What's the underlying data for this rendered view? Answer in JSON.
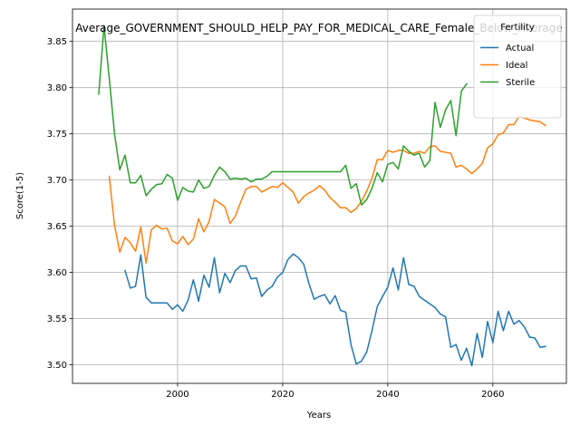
{
  "chart_data": {
    "type": "line",
    "title": "Average_GOVERNMENT_SHOULD_HELP_PAY_FOR_MEDICAL_CARE_Female_Below_Average",
    "xlabel": "Years",
    "ylabel": "Score(1-5)",
    "xlim": [
      1980,
      2074
    ],
    "ylim": [
      3.48,
      3.885
    ],
    "xticks": [
      2000,
      2020,
      2040,
      2060
    ],
    "yticks": [
      3.5,
      3.55,
      3.6,
      3.65,
      3.7,
      3.75,
      3.8,
      3.85
    ],
    "ytick_labels": [
      "3.50",
      "3.55",
      "3.60",
      "3.65",
      "3.70",
      "3.75",
      "3.80",
      "3.85"
    ],
    "grid": true,
    "legend": {
      "title": "Fertility",
      "placement": "upper right"
    },
    "series": [
      {
        "name": "Actual",
        "color": "#1f77b4",
        "x": [
          1990,
          1991,
          1992,
          1993,
          1994,
          1995,
          1996,
          1997,
          1998,
          1999,
          2000,
          2001,
          2002,
          2003,
          2004,
          2005,
          2006,
          2007,
          2008,
          2009,
          2010,
          2011,
          2012,
          2013,
          2014,
          2015,
          2016,
          2017,
          2018,
          2019,
          2020,
          2021,
          2022,
          2023,
          2024,
          2025,
          2026,
          2027,
          2028,
          2029,
          2030,
          2031,
          2032,
          2033,
          2034,
          2035,
          2036,
          2037,
          2038,
          2039,
          2040,
          2041,
          2042,
          2043,
          2044,
          2045,
          2046,
          2047,
          2048,
          2049,
          2050,
          2051,
          2052,
          2053,
          2054,
          2055,
          2056,
          2057,
          2058,
          2059,
          2060,
          2061,
          2062,
          2063,
          2064,
          2065,
          2066,
          2067,
          2068,
          2069,
          2070
        ],
        "values": [
          3.602,
          3.583,
          3.585,
          3.619,
          3.573,
          3.567,
          3.567,
          3.567,
          3.567,
          3.56,
          3.565,
          3.558,
          3.57,
          3.592,
          3.569,
          3.597,
          3.584,
          3.616,
          3.578,
          3.599,
          3.589,
          3.602,
          3.607,
          3.607,
          3.593,
          3.594,
          3.574,
          3.581,
          3.585,
          3.595,
          3.6,
          3.614,
          3.62,
          3.616,
          3.609,
          3.588,
          3.571,
          3.574,
          3.576,
          3.566,
          3.575,
          3.559,
          3.557,
          3.522,
          3.501,
          3.504,
          3.514,
          3.537,
          3.563,
          3.574,
          3.584,
          3.605,
          3.581,
          3.616,
          3.587,
          3.585,
          3.574,
          3.57,
          3.566,
          3.562,
          3.555,
          3.552,
          3.519,
          3.522,
          3.505,
          3.518,
          3.499,
          3.534,
          3.508,
          3.547,
          3.524,
          3.558,
          3.537,
          3.558,
          3.544,
          3.548,
          3.541,
          3.53,
          3.529,
          3.519,
          3.52
        ]
      },
      {
        "name": "Ideal",
        "color": "#ff7f0e",
        "x": [
          1987,
          1988,
          1989,
          1990,
          1991,
          1992,
          1993,
          1994,
          1995,
          1996,
          1997,
          1998,
          1999,
          2000,
          2001,
          2002,
          2003,
          2004,
          2005,
          2006,
          2007,
          2008,
          2009,
          2010,
          2011,
          2012,
          2013,
          2014,
          2015,
          2016,
          2017,
          2018,
          2019,
          2020,
          2021,
          2022,
          2023,
          2024,
          2025,
          2026,
          2027,
          2028,
          2029,
          2030,
          2031,
          2032,
          2033,
          2034,
          2035,
          2036,
          2037,
          2038,
          2039,
          2040,
          2041,
          2042,
          2043,
          2044,
          2045,
          2046,
          2047,
          2048,
          2049,
          2050,
          2051,
          2052,
          2053,
          2054,
          2055,
          2056,
          2057,
          2058,
          2059,
          2060,
          2061,
          2062,
          2063,
          2064,
          2065,
          2066,
          2067,
          2068,
          2069,
          2070
        ],
        "values": [
          3.704,
          3.651,
          3.622,
          3.638,
          3.632,
          3.623,
          3.649,
          3.61,
          3.646,
          3.651,
          3.647,
          3.648,
          3.634,
          3.631,
          3.639,
          3.63,
          3.636,
          3.658,
          3.644,
          3.655,
          3.679,
          3.675,
          3.671,
          3.653,
          3.661,
          3.676,
          3.69,
          3.693,
          3.693,
          3.687,
          3.69,
          3.693,
          3.692,
          3.697,
          3.692,
          3.687,
          3.675,
          3.682,
          3.686,
          3.689,
          3.694,
          3.689,
          3.681,
          3.676,
          3.67,
          3.67,
          3.665,
          3.669,
          3.677,
          3.688,
          3.702,
          3.722,
          3.722,
          3.732,
          3.73,
          3.732,
          3.732,
          3.729,
          3.729,
          3.731,
          3.729,
          3.736,
          3.737,
          3.731,
          3.73,
          3.729,
          3.714,
          3.716,
          3.712,
          3.707,
          3.712,
          3.718,
          3.735,
          3.739,
          3.749,
          3.751,
          3.76,
          3.76,
          3.769,
          3.767,
          3.765,
          3.764,
          3.763,
          3.759
        ]
      },
      {
        "name": "Sterile",
        "color": "#2ca02c",
        "x": [
          1985,
          1986,
          1987,
          1988,
          1989,
          1990,
          1991,
          1992,
          1993,
          1994,
          1995,
          1996,
          1997,
          1998,
          1999,
          2000,
          2001,
          2002,
          2003,
          2004,
          2005,
          2006,
          2007,
          2008,
          2009,
          2010,
          2011,
          2012,
          2013,
          2014,
          2015,
          2016,
          2017,
          2018,
          2019,
          2020,
          2021,
          2022,
          2023,
          2024,
          2025,
          2026,
          2027,
          2028,
          2029,
          2030,
          2031,
          2032,
          2033,
          2034,
          2035,
          2036,
          2037,
          2038,
          2039,
          2040,
          2041,
          2042,
          2043,
          2044,
          2045,
          2046,
          2047,
          2048,
          2049,
          2050,
          2051,
          2052,
          2053,
          2054,
          2055
        ],
        "values": [
          3.793,
          3.867,
          3.81,
          3.75,
          3.711,
          3.727,
          3.697,
          3.697,
          3.705,
          3.683,
          3.69,
          3.695,
          3.696,
          3.706,
          3.702,
          3.678,
          3.692,
          3.688,
          3.687,
          3.7,
          3.691,
          3.693,
          3.705,
          3.714,
          3.709,
          3.701,
          3.702,
          3.701,
          3.702,
          3.698,
          3.701,
          3.701,
          3.704,
          3.709,
          3.709,
          3.709,
          3.709,
          3.709,
          3.709,
          3.709,
          3.709,
          3.709,
          3.709,
          3.709,
          3.709,
          3.709,
          3.709,
          3.716,
          3.691,
          3.696,
          3.673,
          3.679,
          3.691,
          3.708,
          3.698,
          3.717,
          3.719,
          3.712,
          3.737,
          3.731,
          3.727,
          3.729,
          3.714,
          3.721,
          3.784,
          3.757,
          3.776,
          3.786,
          3.748,
          3.796,
          3.804
        ]
      }
    ]
  }
}
